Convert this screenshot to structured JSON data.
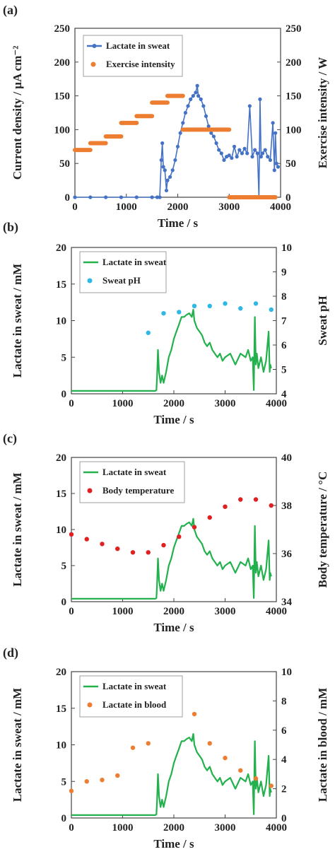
{
  "chart_data": [
    {
      "panel": "(a)",
      "type": "scatter",
      "xlabel": "Time / s",
      "ylabel": "Current density / μA cm⁻²",
      "y2label": "Exercise intensity / W",
      "xlim": [
        0,
        4000
      ],
      "ylim": [
        0,
        250
      ],
      "y2lim": [
        0,
        250
      ],
      "xticks": [
        "0",
        "1000",
        "2000",
        "3000",
        "4000"
      ],
      "yticks": [
        "0",
        "50",
        "100",
        "150",
        "200",
        "250"
      ],
      "y2ticks": [
        "0",
        "50",
        "100",
        "150",
        "200",
        "250"
      ],
      "legend_position": "top-left",
      "series": [
        {
          "name": "Lactate in sweat",
          "axis": "left",
          "color": "#4472C4",
          "style": "line-markers",
          "x": [
            0,
            300,
            600,
            900,
            1200,
            1500,
            1600,
            1650,
            1680,
            1700,
            1720,
            1750,
            1780,
            1800,
            1850,
            1900,
            1950,
            2000,
            2050,
            2100,
            2150,
            2200,
            2250,
            2300,
            2350,
            2380,
            2400,
            2450,
            2500,
            2550,
            2600,
            2650,
            2700,
            2750,
            2800,
            2850,
            2900,
            2950,
            3000,
            3050,
            3100,
            3150,
            3200,
            3250,
            3300,
            3350,
            3400,
            3450,
            3500,
            3550,
            3580,
            3600,
            3620,
            3650,
            3700,
            3750,
            3800,
            3850,
            3880,
            3900,
            3920,
            3950
          ],
          "y": [
            0,
            0,
            0,
            0,
            0,
            0,
            0,
            0,
            55,
            80,
            45,
            40,
            10,
            25,
            30,
            40,
            55,
            75,
            95,
            110,
            125,
            135,
            145,
            150,
            155,
            165,
            150,
            145,
            135,
            120,
            105,
            95,
            90,
            80,
            70,
            65,
            55,
            60,
            62,
            58,
            75,
            60,
            70,
            65,
            72,
            65,
            135,
            60,
            70,
            65,
            0,
            145,
            60,
            65,
            70,
            60,
            55,
            110,
            40,
            95,
            50,
            45
          ]
        },
        {
          "name": "Exercise intensity",
          "axis": "right",
          "color": "#ED7D31",
          "style": "step",
          "segments": [
            {
              "x0": 0,
              "x1": 300,
              "y": 70
            },
            {
              "x0": 300,
              "x1": 600,
              "y": 80
            },
            {
              "x0": 600,
              "x1": 900,
              "y": 90
            },
            {
              "x0": 900,
              "x1": 1200,
              "y": 110
            },
            {
              "x0": 1200,
              "x1": 1500,
              "y": 120
            },
            {
              "x0": 1500,
              "x1": 1800,
              "y": 140
            },
            {
              "x0": 1800,
              "x1": 2100,
              "y": 150
            },
            {
              "x0": 2100,
              "x1": 3000,
              "y": 100
            },
            {
              "x0": 3000,
              "x1": 3900,
              "y": 0
            }
          ]
        }
      ]
    },
    {
      "panel": "(b)",
      "type": "scatter",
      "xlabel": "Time / s",
      "ylabel": "Lactate in sweat / mM",
      "y2label": "Sweat pH",
      "xlim": [
        0,
        4000
      ],
      "ylim": [
        0,
        20
      ],
      "y2lim": [
        4,
        10
      ],
      "xticks": [
        "0",
        "1000",
        "2000",
        "3000",
        "4000"
      ],
      "yticks": [
        "0",
        "5",
        "10",
        "15",
        "20"
      ],
      "y2ticks": [
        "4",
        "5",
        "6",
        "7",
        "8",
        "9",
        "10"
      ],
      "legend_position": "top-left",
      "series": [
        {
          "name": "Lactate in sweat",
          "axis": "left",
          "color": "#22B14C",
          "style": "line",
          "x": [
            0,
            1640,
            1660,
            1670,
            1690,
            1710,
            1740,
            1770,
            1800,
            1850,
            1900,
            1950,
            2000,
            2050,
            2100,
            2150,
            2200,
            2250,
            2300,
            2350,
            2380,
            2400,
            2450,
            2500,
            2550,
            2600,
            2650,
            2700,
            2750,
            2800,
            2850,
            2900,
            2950,
            3000,
            3100,
            3200,
            3300,
            3400,
            3450,
            3500,
            3540,
            3560,
            3580,
            3600,
            3620,
            3650,
            3700,
            3750,
            3800,
            3850,
            3870,
            3880,
            3900
          ],
          "y": [
            0.4,
            0.4,
            0.5,
            2,
            6,
            3,
            1.5,
            2.5,
            1.5,
            3,
            5,
            6,
            7.5,
            8.5,
            9.5,
            10.5,
            10.5,
            10.8,
            11,
            10.5,
            11.5,
            10,
            9,
            8.5,
            8,
            7,
            6.5,
            7,
            6,
            5.5,
            5,
            5.5,
            4.5,
            5,
            5.5,
            4,
            5.5,
            5,
            6,
            4.5,
            5,
            0.5,
            10.5,
            4,
            5.5,
            3.5,
            5,
            3,
            4.5,
            8.5,
            3,
            4,
            3.5
          ]
        },
        {
          "name": "Sweat pH",
          "axis": "right",
          "color": "#2EB8E6",
          "style": "markers",
          "x": [
            1500,
            1800,
            2100,
            2400,
            2700,
            3000,
            3300,
            3600,
            3900
          ],
          "y": [
            6.5,
            7.3,
            7.35,
            7.6,
            7.6,
            7.7,
            7.5,
            7.7,
            7.45
          ]
        }
      ]
    },
    {
      "panel": "(c)",
      "type": "scatter",
      "xlabel": "Time / s",
      "ylabel": "Lactate in sweat / mM",
      "y2label": "Body temperature / °C",
      "xlim": [
        0,
        4000
      ],
      "ylim": [
        0,
        20
      ],
      "y2lim": [
        34,
        40
      ],
      "xticks": [
        "0",
        "1000",
        "2000",
        "3000",
        "4000"
      ],
      "yticks": [
        "0",
        "5",
        "10",
        "15",
        "20"
      ],
      "y2ticks": [
        "34",
        "36",
        "38",
        "40"
      ],
      "legend_position": "top-left",
      "series": [
        {
          "name": "Lactate in sweat",
          "axis": "left",
          "color": "#22B14C",
          "style": "line",
          "x": [
            0,
            1640,
            1660,
            1670,
            1690,
            1710,
            1740,
            1770,
            1800,
            1850,
            1900,
            1950,
            2000,
            2050,
            2100,
            2150,
            2200,
            2250,
            2300,
            2350,
            2380,
            2400,
            2450,
            2500,
            2550,
            2600,
            2650,
            2700,
            2750,
            2800,
            2850,
            2900,
            2950,
            3000,
            3100,
            3200,
            3300,
            3400,
            3450,
            3500,
            3540,
            3560,
            3580,
            3600,
            3620,
            3650,
            3700,
            3750,
            3800,
            3850,
            3870,
            3880,
            3900
          ],
          "y": [
            0.4,
            0.4,
            0.5,
            2,
            6,
            3,
            1.5,
            2.5,
            1.5,
            3,
            5,
            6,
            7.5,
            8.5,
            9.5,
            10.5,
            10.5,
            10.8,
            11,
            10.5,
            11.5,
            10,
            9,
            8.5,
            8,
            7,
            6.5,
            7,
            6,
            5.5,
            5,
            5.5,
            4.5,
            5,
            5.5,
            4,
            5.5,
            5,
            6,
            4.5,
            5,
            0.5,
            10.5,
            4,
            5.5,
            3.5,
            5,
            3,
            4.5,
            8.5,
            3,
            4,
            3.5
          ]
        },
        {
          "name": "Body temperature",
          "axis": "right",
          "color": "#E02020",
          "style": "markers",
          "x": [
            0,
            300,
            600,
            900,
            1200,
            1500,
            1800,
            2100,
            2400,
            2700,
            3000,
            3300,
            3600,
            3900
          ],
          "y": [
            36.8,
            36.6,
            36.4,
            36.2,
            36.05,
            36.05,
            36.35,
            36.7,
            37.1,
            37.5,
            37.95,
            38.25,
            38.25,
            38.0
          ]
        }
      ]
    },
    {
      "panel": "(d)",
      "type": "scatter",
      "xlabel": "Time / s",
      "ylabel": "Lactate in sweat / mM",
      "y2label": "Lactate in blood / mM",
      "xlim": [
        0,
        4000
      ],
      "ylim": [
        0,
        20
      ],
      "y2lim": [
        0,
        10
      ],
      "xticks": [
        "0",
        "1000",
        "2000",
        "3000",
        "4000"
      ],
      "yticks": [
        "0",
        "5",
        "10",
        "15",
        "20"
      ],
      "y2ticks": [
        "0",
        "2",
        "4",
        "6",
        "8",
        "10"
      ],
      "legend_position": "top-left",
      "series": [
        {
          "name": "Lactate in sweat",
          "axis": "left",
          "color": "#22B14C",
          "style": "line",
          "x": [
            0,
            1640,
            1660,
            1670,
            1690,
            1710,
            1740,
            1770,
            1800,
            1850,
            1900,
            1950,
            2000,
            2050,
            2100,
            2150,
            2200,
            2250,
            2300,
            2350,
            2380,
            2400,
            2450,
            2500,
            2550,
            2600,
            2650,
            2700,
            2750,
            2800,
            2850,
            2900,
            2950,
            3000,
            3100,
            3200,
            3300,
            3400,
            3450,
            3500,
            3540,
            3560,
            3580,
            3600,
            3620,
            3650,
            3700,
            3750,
            3800,
            3850,
            3870,
            3880,
            3900
          ],
          "y": [
            0.4,
            0.4,
            0.5,
            2,
            6,
            3,
            1.5,
            2.5,
            1.5,
            3,
            5,
            6,
            7.5,
            8.5,
            9.5,
            10.5,
            10.5,
            10.8,
            11,
            10.5,
            11.5,
            10,
            9,
            8.5,
            8,
            7,
            6.5,
            7,
            6,
            5.5,
            5,
            5.5,
            4.5,
            5,
            5.5,
            4,
            5.5,
            5,
            6,
            4.5,
            5,
            0.5,
            10.5,
            4,
            5.5,
            3.5,
            5,
            3,
            4.5,
            8.5,
            3,
            4,
            3.5
          ]
        },
        {
          "name": "Lactate in blood",
          "axis": "right",
          "color": "#ED7D31",
          "style": "markers",
          "x": [
            0,
            300,
            600,
            900,
            1200,
            1500,
            1800,
            2100,
            2400,
            2700,
            3000,
            3300,
            3600,
            3900
          ],
          "y": [
            1.85,
            2.5,
            2.6,
            2.9,
            4.8,
            5.1,
            7.1,
            7.6,
            7.1,
            5.1,
            4.1,
            3.25,
            2.7,
            2.2
          ]
        }
      ]
    }
  ]
}
